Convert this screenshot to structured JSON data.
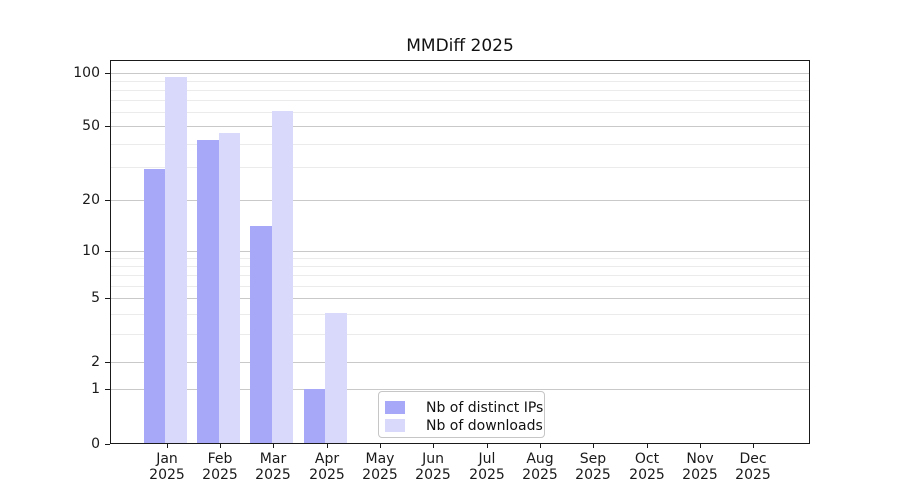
{
  "chart_data": {
    "type": "bar",
    "title": "MMDiff 2025",
    "categories": [
      "Jan",
      "Feb",
      "Mar",
      "Apr",
      "May",
      "Jun",
      "Jul",
      "Aug",
      "Sep",
      "Oct",
      "Nov",
      "Dec"
    ],
    "x_tick_second_line": "2025",
    "series": [
      {
        "name": "Nb of distinct IPs",
        "color": "#a8a8f8",
        "values": [
          29,
          42,
          14,
          1,
          0,
          0,
          0,
          0,
          0,
          0,
          0,
          0
        ]
      },
      {
        "name": "Nb of downloads",
        "color": "#d9d9fb",
        "values": [
          95,
          46,
          61,
          4,
          0,
          0,
          0,
          0,
          0,
          0,
          0,
          0
        ]
      }
    ],
    "y_axis": {
      "scale": "symlog",
      "major_ticks": [
        0,
        1,
        2,
        5,
        10,
        20,
        50,
        100
      ],
      "minor_gridlines": [
        3,
        4,
        6,
        7,
        8,
        9,
        30,
        40,
        60,
        70,
        80,
        90
      ],
      "range": [
        0,
        100
      ]
    },
    "grid": "horizontal",
    "legend": {
      "position": "lower-center",
      "entries": [
        "Nb of distinct IPs",
        "Nb of downloads"
      ]
    }
  }
}
